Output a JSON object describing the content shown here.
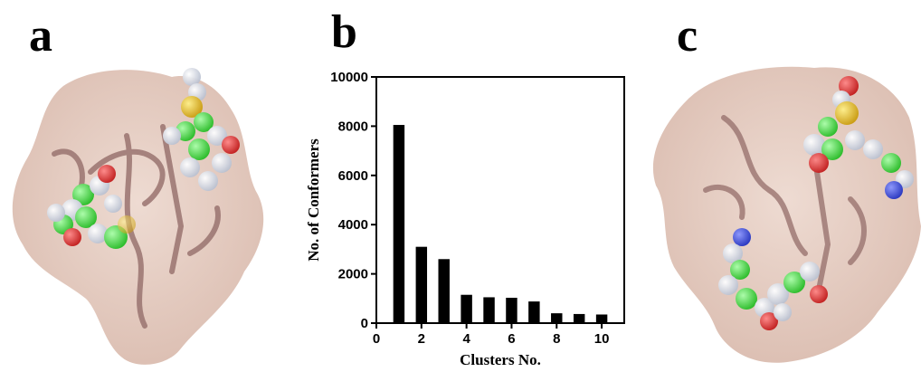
{
  "panels": {
    "a": {
      "letter": "a"
    },
    "b": {
      "letter": "b"
    },
    "c": {
      "letter": "c"
    }
  },
  "chart_data": {
    "type": "bar",
    "title": "",
    "xlabel": "Clusters No.",
    "ylabel": "No. of Conformers",
    "x": [
      1,
      2,
      3,
      4,
      5,
      6,
      7,
      8,
      9,
      10
    ],
    "values": [
      8050,
      3100,
      2600,
      1150,
      1050,
      1030,
      880,
      400,
      370,
      350
    ],
    "xlim": [
      0,
      11
    ],
    "ylim": [
      0,
      10000
    ],
    "xticks": [
      0,
      2,
      4,
      6,
      8,
      10
    ],
    "yticks": [
      0,
      2000,
      4000,
      6000,
      8000,
      10000
    ],
    "bar_color": "#000000",
    "grid": false
  },
  "colors": {
    "surface": "#e3c9bd",
    "ribbon": "#9a7470",
    "carbon": "#33dd33",
    "oxygen": "#e02a2a",
    "hydrogen": "#e8ecf4",
    "sulfur": "#e2b614",
    "nitrogen": "#2f3fd9"
  }
}
